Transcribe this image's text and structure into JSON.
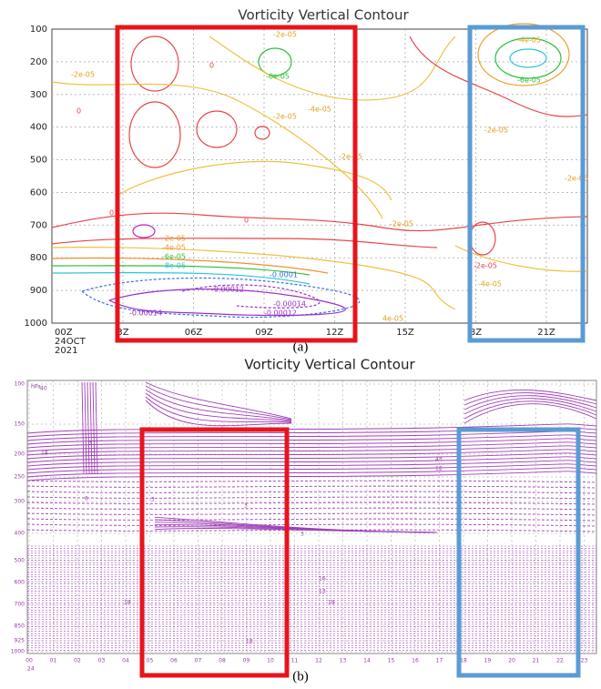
{
  "figure_a": {
    "title": "Vorticity Vertical Contour",
    "y_ticks": [
      "100",
      "200",
      "300",
      "400",
      "500",
      "600",
      "700",
      "800",
      "900",
      "1000"
    ],
    "x_origin": [
      "00Z",
      "24OCT",
      "2021"
    ],
    "x_ticks": [
      "3Z",
      "06Z",
      "09Z",
      "12Z",
      "15Z",
      "8Z",
      "21Z"
    ],
    "contour_labels": [
      "-2e-05",
      "-2e-05",
      "-6e-05",
      "0",
      "-2e-05",
      "-4e-05",
      "-4e-05",
      "-6e-05",
      "-2e-05",
      "-2e-05",
      "-2e-05",
      "-2e-05",
      "-4e-05",
      "-6e-05",
      "-8e-05",
      "-0.0001",
      "-0.00012",
      "-0.00014",
      "-0.00012",
      "-0.00014",
      "-2e-05",
      "-4e-05",
      "0",
      "0",
      "0",
      "-2e-05",
      "4e-05"
    ],
    "caption": "(a)"
  },
  "figure_b": {
    "title": "Vorticity Vertical Contour",
    "unit": "hPa",
    "y_ticks": [
      "100",
      "150",
      "200",
      "250",
      "300",
      "400",
      "500",
      "600",
      "700",
      "850",
      "925",
      "1000"
    ],
    "x_ticks": [
      "00",
      "01",
      "02",
      "03",
      "04",
      "05",
      "06",
      "07",
      "08",
      "09",
      "10",
      "11",
      "12",
      "13",
      "14",
      "15",
      "16",
      "17",
      "18",
      "19",
      "20",
      "21",
      "22",
      "23"
    ],
    "x_origin": "24",
    "contour_labels": [
      "40",
      "3",
      "18",
      "6",
      "3",
      "3",
      "3",
      "43",
      "12",
      "16",
      "13",
      "18",
      "18",
      "18"
    ],
    "caption": "(b)"
  }
}
